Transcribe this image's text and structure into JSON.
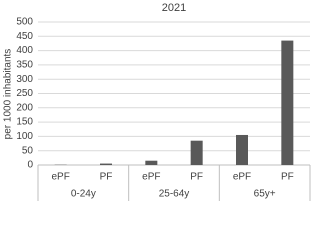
{
  "chart_data": {
    "type": "bar",
    "title": "2021",
    "y_label": "per 1000 inhabitants",
    "categories": [
      "ePF",
      "PF",
      "ePF",
      "PF",
      "ePF",
      "PF"
    ],
    "groups": [
      "0-24y",
      "25-64y",
      "65y+"
    ],
    "values": [
      1,
      5,
      15,
      85,
      105,
      435
    ],
    "color": "#595959",
    "ylim": [
      0,
      500
    ],
    "yticks": [
      0,
      50,
      100,
      150,
      200,
      250,
      300,
      350,
      400,
      450,
      500
    ],
    "grid": true
  }
}
